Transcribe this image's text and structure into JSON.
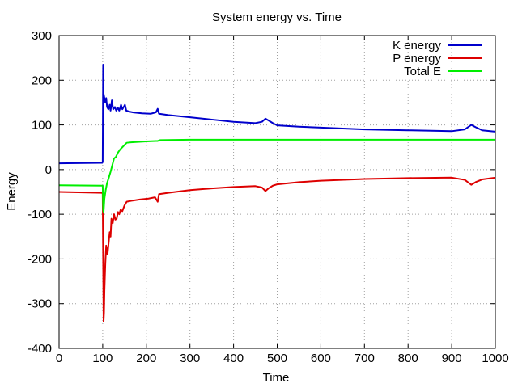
{
  "chart_data": {
    "type": "line",
    "title": "System energy vs. Time",
    "xlabel": "Time",
    "ylabel": "Energy",
    "xlim": [
      0,
      1000
    ],
    "ylim": [
      -400,
      300
    ],
    "x_ticks": [
      0,
      100,
      200,
      300,
      400,
      500,
      600,
      700,
      800,
      900,
      1000
    ],
    "y_ticks": [
      -400,
      -300,
      -200,
      -100,
      0,
      100,
      200,
      300
    ],
    "grid": true,
    "legend_position": "top-right",
    "series": [
      {
        "name": "K energy",
        "color": "#0000cc",
        "points": [
          [
            0,
            14
          ],
          [
            99,
            15
          ],
          [
            100,
            17
          ],
          [
            101,
            235
          ],
          [
            102,
            170
          ],
          [
            104,
            160
          ],
          [
            106,
            150
          ],
          [
            108,
            160
          ],
          [
            110,
            140
          ],
          [
            113,
            135
          ],
          [
            116,
            145
          ],
          [
            118,
            132
          ],
          [
            121,
            155
          ],
          [
            124,
            135
          ],
          [
            128,
            140
          ],
          [
            131,
            132
          ],
          [
            135,
            138
          ],
          [
            138,
            132
          ],
          [
            142,
            145
          ],
          [
            145,
            135
          ],
          [
            148,
            140
          ],
          [
            151,
            145
          ],
          [
            154,
            132
          ],
          [
            160,
            130
          ],
          [
            170,
            128
          ],
          [
            190,
            126
          ],
          [
            210,
            125
          ],
          [
            222,
            128
          ],
          [
            226,
            136
          ],
          [
            229,
            125
          ],
          [
            250,
            122
          ],
          [
            300,
            117
          ],
          [
            350,
            112
          ],
          [
            400,
            107
          ],
          [
            450,
            104
          ],
          [
            465,
            107
          ],
          [
            473,
            114
          ],
          [
            480,
            110
          ],
          [
            490,
            104
          ],
          [
            500,
            99
          ],
          [
            550,
            96
          ],
          [
            600,
            94
          ],
          [
            700,
            90
          ],
          [
            800,
            88
          ],
          [
            900,
            86
          ],
          [
            930,
            90
          ],
          [
            945,
            100
          ],
          [
            955,
            95
          ],
          [
            970,
            88
          ],
          [
            1000,
            85
          ]
        ]
      },
      {
        "name": "P energy",
        "color": "#dd0000",
        "points": [
          [
            0,
            -50
          ],
          [
            99,
            -52
          ],
          [
            100,
            -55
          ],
          [
            101,
            -200
          ],
          [
            102,
            -340
          ],
          [
            103,
            -320
          ],
          [
            104,
            -270
          ],
          [
            106,
            -210
          ],
          [
            108,
            -170
          ],
          [
            111,
            -190
          ],
          [
            113,
            -170
          ],
          [
            116,
            -140
          ],
          [
            118,
            -150
          ],
          [
            120,
            -110
          ],
          [
            123,
            -120
          ],
          [
            126,
            -100
          ],
          [
            129,
            -112
          ],
          [
            132,
            -110
          ],
          [
            135,
            -95
          ],
          [
            138,
            -100
          ],
          [
            141,
            -90
          ],
          [
            145,
            -93
          ],
          [
            150,
            -80
          ],
          [
            155,
            -72
          ],
          [
            165,
            -70
          ],
          [
            185,
            -67
          ],
          [
            205,
            -65
          ],
          [
            220,
            -62
          ],
          [
            226,
            -72
          ],
          [
            229,
            -55
          ],
          [
            250,
            -52
          ],
          [
            300,
            -46
          ],
          [
            350,
            -42
          ],
          [
            400,
            -39
          ],
          [
            450,
            -37
          ],
          [
            465,
            -40
          ],
          [
            473,
            -48
          ],
          [
            480,
            -42
          ],
          [
            490,
            -36
          ],
          [
            500,
            -33
          ],
          [
            550,
            -28
          ],
          [
            600,
            -25
          ],
          [
            700,
            -21
          ],
          [
            800,
            -19
          ],
          [
            900,
            -18
          ],
          [
            930,
            -23
          ],
          [
            945,
            -34
          ],
          [
            955,
            -28
          ],
          [
            970,
            -22
          ],
          [
            1000,
            -18
          ]
        ]
      },
      {
        "name": "Total E",
        "color": "#00ee00",
        "points": [
          [
            0,
            -35
          ],
          [
            99,
            -36
          ],
          [
            100,
            -36
          ],
          [
            101,
            -90
          ],
          [
            102,
            -95
          ],
          [
            104,
            -65
          ],
          [
            107,
            -45
          ],
          [
            110,
            -30
          ],
          [
            114,
            -18
          ],
          [
            118,
            -5
          ],
          [
            122,
            10
          ],
          [
            126,
            25
          ],
          [
            130,
            28
          ],
          [
            135,
            38
          ],
          [
            140,
            45
          ],
          [
            145,
            50
          ],
          [
            150,
            55
          ],
          [
            155,
            60
          ],
          [
            165,
            61
          ],
          [
            180,
            62
          ],
          [
            200,
            63
          ],
          [
            222,
            64
          ],
          [
            226,
            64
          ],
          [
            232,
            66
          ],
          [
            300,
            67
          ],
          [
            400,
            67
          ],
          [
            500,
            67
          ],
          [
            600,
            67
          ],
          [
            700,
            67
          ],
          [
            800,
            67
          ],
          [
            900,
            67
          ],
          [
            1000,
            67
          ]
        ]
      }
    ]
  }
}
